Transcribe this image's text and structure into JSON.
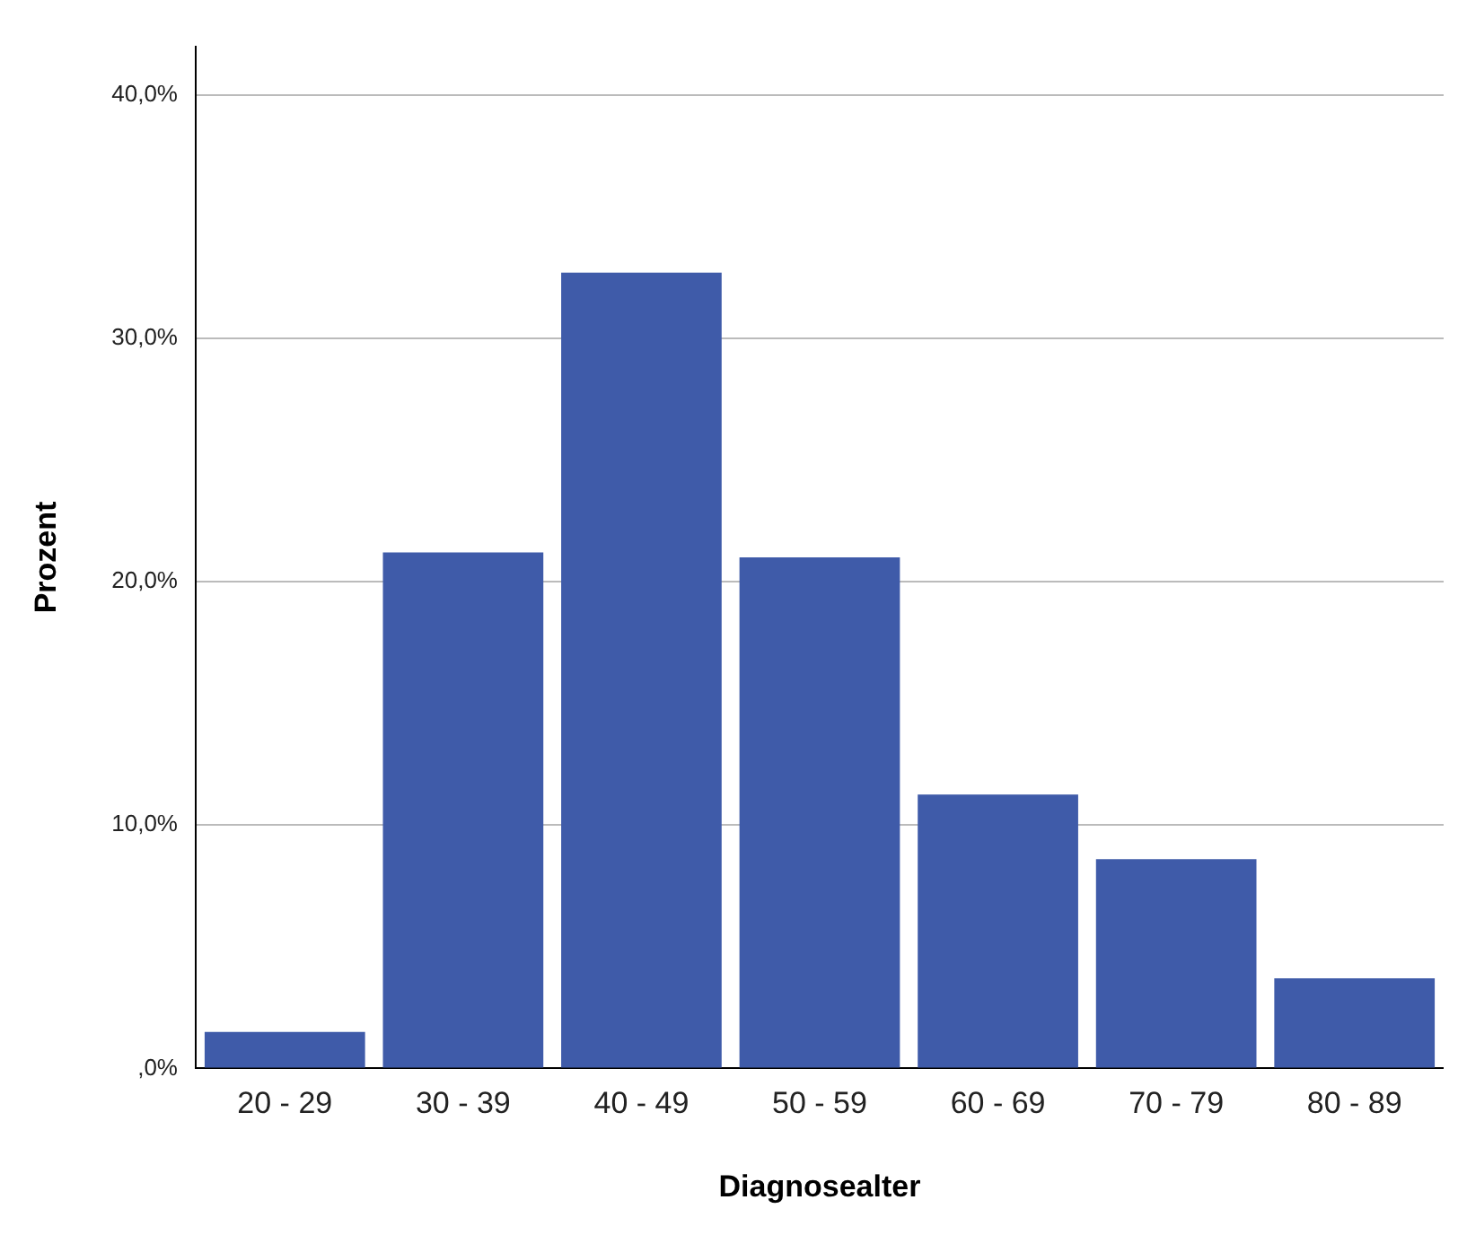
{
  "chart_data": {
    "type": "bar",
    "xlabel": "Diagnosealter",
    "ylabel": "Prozent",
    "categories": [
      "20 - 29",
      "30 - 39",
      "40 - 49",
      "50 - 59",
      "60 - 69",
      "70 - 79",
      "80 - 89"
    ],
    "values": [
      1.5,
      21.2,
      32.7,
      21.0,
      11.25,
      8.6,
      3.7
    ],
    "color": "#3f5ba9",
    "ylim": [
      0,
      42
    ],
    "yticks": [
      {
        "value": 0,
        "label": ",0%"
      },
      {
        "value": 10,
        "label": "10,0%"
      },
      {
        "value": 20,
        "label": "20,0%"
      },
      {
        "value": 30,
        "label": "30,0%"
      },
      {
        "value": 40,
        "label": "40,0%"
      }
    ],
    "grid": "y",
    "legend": false
  }
}
